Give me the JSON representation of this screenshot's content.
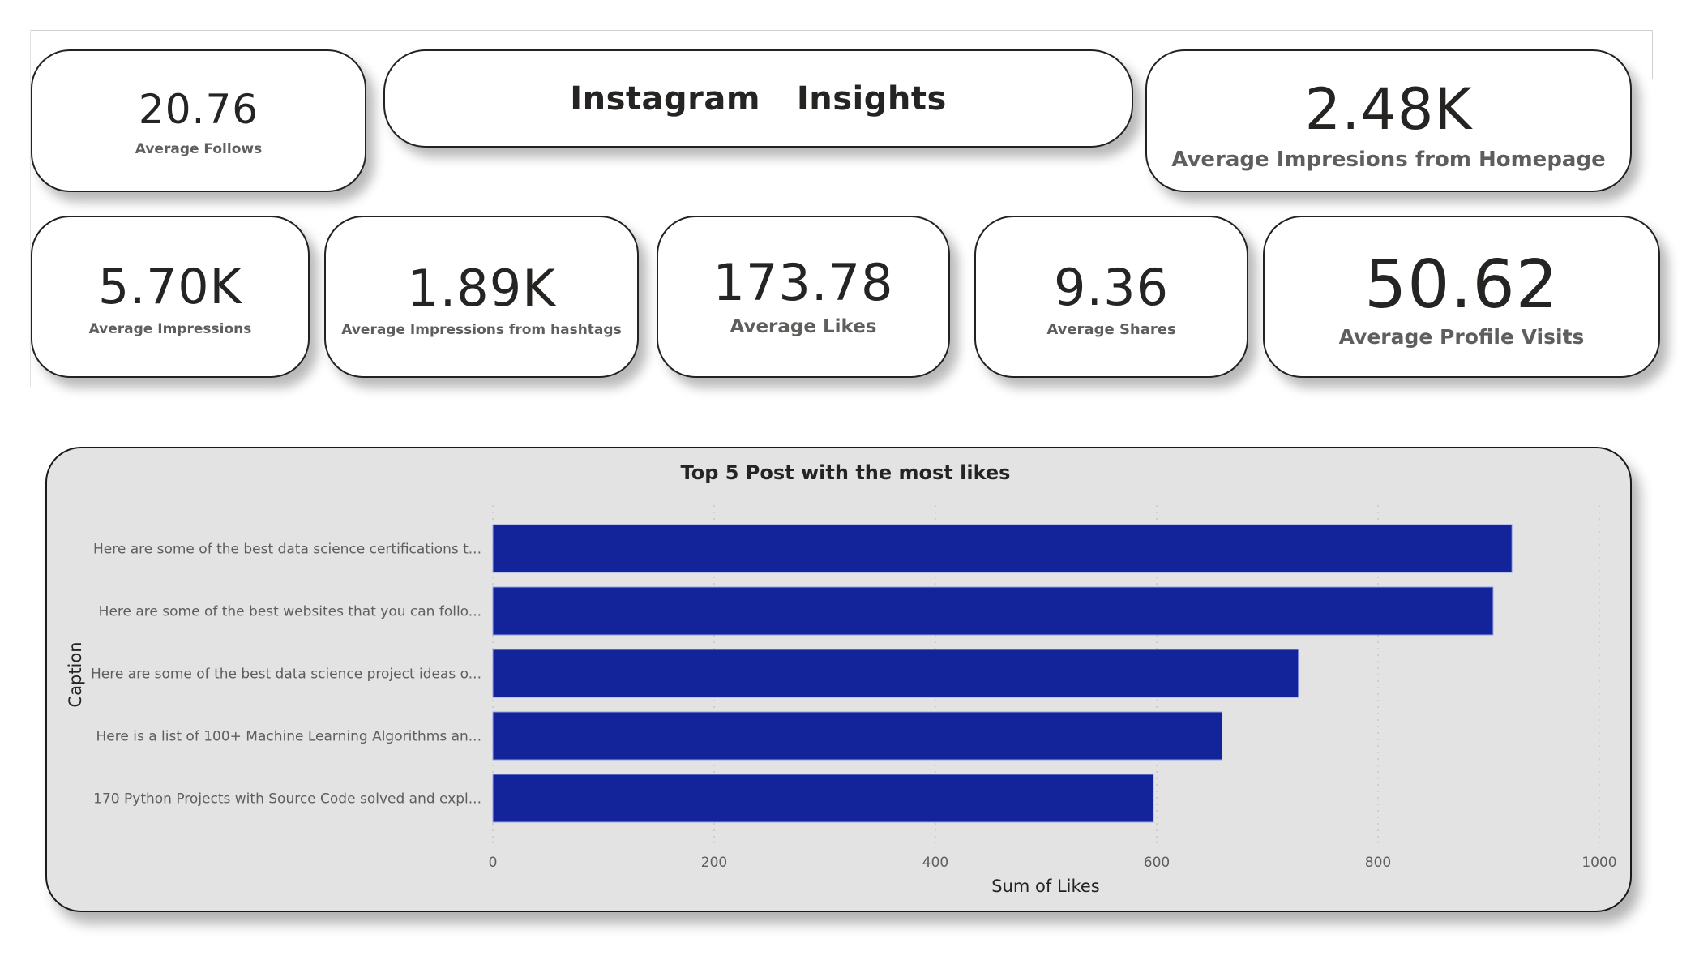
{
  "dashboard": {
    "title": "Instagram  Insights"
  },
  "kpis": {
    "follows": {
      "value": "20.76",
      "label": "Average Follows"
    },
    "homepage": {
      "value": "2.48K",
      "label": "Average Impresions from Homepage"
    },
    "impressions": {
      "value": "5.70K",
      "label": "Average Impressions"
    },
    "hashtags": {
      "value": "1.89K",
      "label": "Average Impressions from hashtags"
    },
    "likes": {
      "value": "173.78",
      "label": "Average Likes"
    },
    "shares": {
      "value": "9.36",
      "label": "Average Shares"
    },
    "visits": {
      "value": "50.62",
      "label": "Average Profile Visits"
    }
  },
  "colors": {
    "bar": "#13249b",
    "panel_bg": "#e3e3e3"
  },
  "chart_data": {
    "type": "bar",
    "orientation": "horizontal",
    "title": "Top 5 Post with the most likes",
    "xlabel": "Sum of Likes",
    "ylabel": "Caption",
    "categories": [
      "Here are some of the best data science certifications t...",
      "Here are some of the best websites that you can follo...",
      "Here are some of the best data science project ideas o...",
      "Here is a list of 100+ Machine Learning Algorithms an...",
      "170 Python Projects with Source Code solved and expl..."
    ],
    "values": [
      921,
      904,
      728,
      659,
      597
    ],
    "xlim": [
      0,
      1000
    ],
    "xticks": [
      0,
      200,
      400,
      600,
      800,
      1000
    ],
    "xtick_labels": [
      "0",
      "200",
      "400",
      "600",
      "800",
      "1000"
    ],
    "grid": true,
    "legend": "none"
  }
}
